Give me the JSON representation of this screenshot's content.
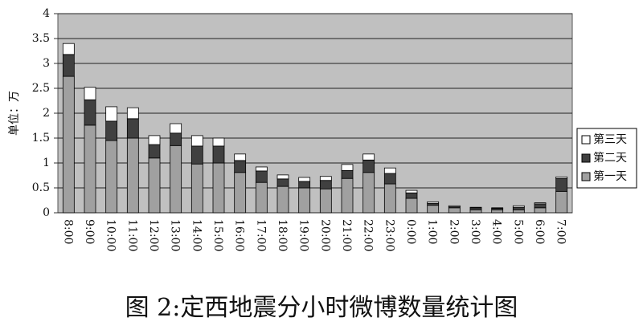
{
  "chart_data": {
    "type": "stacked-bar",
    "title": "图 2:定西地震分小时微博数量统计图",
    "y_label": "单位：万",
    "categories": [
      "8:00",
      "9:00",
      "10:00",
      "11:00",
      "12:00",
      "13:00",
      "14:00",
      "15:00",
      "16:00",
      "17:00",
      "18:00",
      "19:00",
      "20:00",
      "21:00",
      "22:00",
      "23:00",
      "0:00",
      "1:00",
      "2:00",
      "3:00",
      "4:00",
      "5:00",
      "6:00",
      "7:00"
    ],
    "series": [
      {
        "name": "第一天",
        "color": "#a0a0a0",
        "values": [
          2.74,
          1.76,
          1.45,
          1.5,
          1.1,
          1.35,
          0.98,
          1.0,
          0.81,
          0.61,
          0.53,
          0.5,
          0.48,
          0.69,
          0.81,
          0.58,
          0.29,
          0.15,
          0.1,
          0.06,
          0.06,
          0.06,
          0.1,
          0.43
        ]
      },
      {
        "name": "第二天",
        "color": "#404040",
        "values": [
          0.44,
          0.51,
          0.39,
          0.39,
          0.27,
          0.25,
          0.36,
          0.34,
          0.24,
          0.23,
          0.15,
          0.13,
          0.17,
          0.16,
          0.25,
          0.21,
          0.11,
          0.04,
          0.02,
          0.04,
          0.03,
          0.05,
          0.08,
          0.26
        ]
      },
      {
        "name": "第三天",
        "color": "#ffffff",
        "values": [
          0.22,
          0.25,
          0.29,
          0.22,
          0.18,
          0.19,
          0.21,
          0.16,
          0.13,
          0.08,
          0.08,
          0.08,
          0.08,
          0.12,
          0.12,
          0.11,
          0.05,
          0.03,
          0.02,
          0.01,
          0.01,
          0.03,
          0.02,
          0.03
        ]
      }
    ],
    "ylim": [
      0,
      4
    ],
    "yticks": [
      0,
      0.5,
      1,
      1.5,
      2,
      2.5,
      3,
      3.5,
      4
    ],
    "grid": true,
    "legend": "right"
  }
}
